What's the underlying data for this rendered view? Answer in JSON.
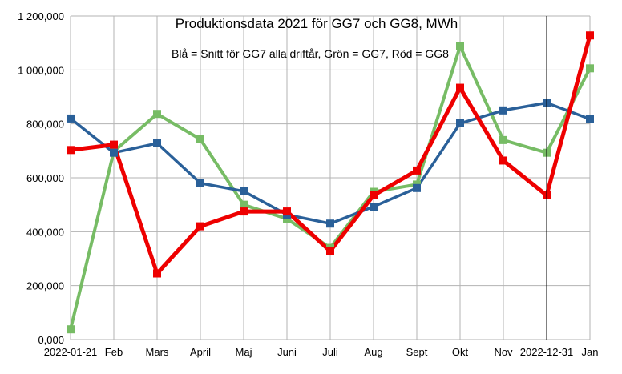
{
  "chart_data": {
    "type": "line",
    "title": "Produktionsdata 2021 för GG7 och GG8, MWh",
    "subtitle": "Blå = Snitt för GG7 alla driftår, Grön = GG7, Röd = GG8",
    "xlabel": "",
    "ylabel": "",
    "categories": [
      "2022-01-21",
      "Feb",
      "Mars",
      "April",
      "Maj",
      "Juni",
      "Juli",
      "Aug",
      "Sept",
      "Okt",
      "Nov",
      "2022-12-31",
      "Jan"
    ],
    "ylim": [
      0,
      1200000
    ],
    "yticks": [
      0,
      200000,
      400000,
      600000,
      800000,
      1000000,
      1200000
    ],
    "ytick_labels": [
      "0,000",
      "200,000",
      "400,000",
      "600,000",
      "800,000",
      "1 000,000",
      "1 200,000"
    ],
    "grid": true,
    "vertical_marker_category": "2022-12-31",
    "series": [
      {
        "key": "green",
        "color": "#77bc65",
        "marker_color": "#77bc65",
        "values": [
          38000,
          698000,
          837000,
          743000,
          500000,
          448000,
          340000,
          548000,
          575000,
          1088000,
          740000,
          693000,
          1006000
        ]
      },
      {
        "key": "blue",
        "color": "#2a6099",
        "marker_color": "#2a6099",
        "values": [
          820000,
          693000,
          728000,
          580000,
          550000,
          463000,
          430000,
          493000,
          562000,
          802000,
          850000,
          878000,
          818000
        ]
      },
      {
        "key": "red",
        "color": "#ee0000",
        "marker_color": "#ee0000",
        "values": [
          703000,
          723000,
          245000,
          420000,
          475000,
          475000,
          328000,
          535000,
          627000,
          934000,
          664000,
          535000,
          1128000
        ]
      }
    ]
  }
}
